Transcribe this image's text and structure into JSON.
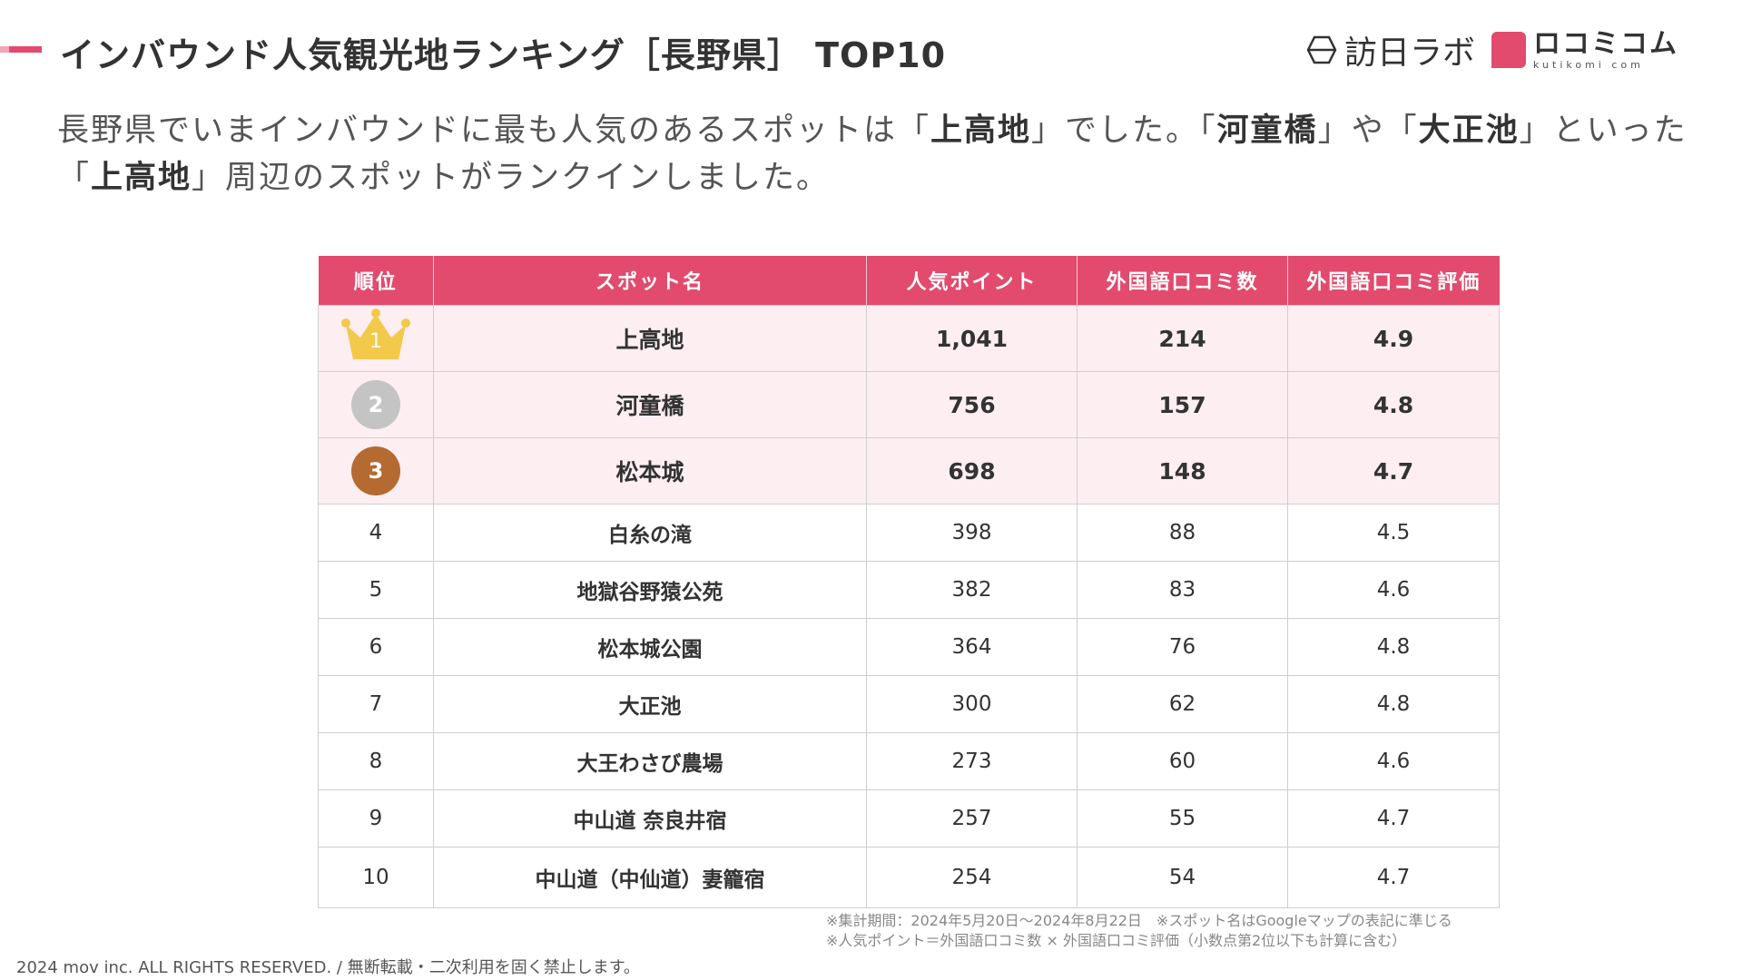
{
  "header": {
    "title": "インバウンド人気観光地ランキング［長野県］ TOP10",
    "logo_houjin": "訪日ラボ",
    "logo_kuti_big": "ロコミコム",
    "logo_kuti_small": "kutikomi com"
  },
  "lead": {
    "p1": "長野県でいまインバウンドに最も人気のあるスポットは「",
    "b1": "上高地",
    "p2": "」でした。「",
    "b2": "河童橋",
    "p3": "」や「",
    "b3": "大正池",
    "p4": "」といった「",
    "b4": "上高地",
    "p5": "」周辺のスポットがランクインしました。"
  },
  "table": {
    "headers": [
      "順位",
      "スポット名",
      "人気ポイント",
      "外国語口コミ数",
      "外国語口コミ評価"
    ],
    "rows": [
      {
        "rank": "1",
        "name": "上高地",
        "points": "1,041",
        "reviews": "214",
        "rating": "4.9"
      },
      {
        "rank": "2",
        "name": "河童橋",
        "points": "756",
        "reviews": "157",
        "rating": "4.8"
      },
      {
        "rank": "3",
        "name": "松本城",
        "points": "698",
        "reviews": "148",
        "rating": "4.7"
      },
      {
        "rank": "4",
        "name": "白糸の滝",
        "points": "398",
        "reviews": "88",
        "rating": "4.5"
      },
      {
        "rank": "5",
        "name": "地獄谷野猿公苑",
        "points": "382",
        "reviews": "83",
        "rating": "4.6"
      },
      {
        "rank": "6",
        "name": "松本城公園",
        "points": "364",
        "reviews": "76",
        "rating": "4.8"
      },
      {
        "rank": "7",
        "name": "大正池",
        "points": "300",
        "reviews": "62",
        "rating": "4.8"
      },
      {
        "rank": "8",
        "name": "大王わさび農場",
        "points": "273",
        "reviews": "60",
        "rating": "4.6"
      },
      {
        "rank": "9",
        "name": "中山道 奈良井宿",
        "points": "257",
        "reviews": "55",
        "rating": "4.7"
      },
      {
        "rank": "10",
        "name": "中山道（中仙道）妻籠宿",
        "points": "254",
        "reviews": "54",
        "rating": "4.7"
      }
    ]
  },
  "notes": {
    "line1": "※集計期間：2024年5月20日〜2024年8月22日　※スポット名はGoogleマップの表記に準じる",
    "line2": "※人気ポイント＝外国語口コミ数 × 外国語口コミ評価（小数点第2位以下も計算に含む）"
  },
  "footer": {
    "copyright": "2024 mov inc. ALL RIGHTS RESERVED. / 無断転載・二次利用を固く禁止します。"
  },
  "colors": {
    "accent": "#e24b6e",
    "top_row_bg": "#fdeef2",
    "gold": "#f3c94a",
    "silver": "#c4c4c4",
    "bronze": "#b46a31"
  }
}
